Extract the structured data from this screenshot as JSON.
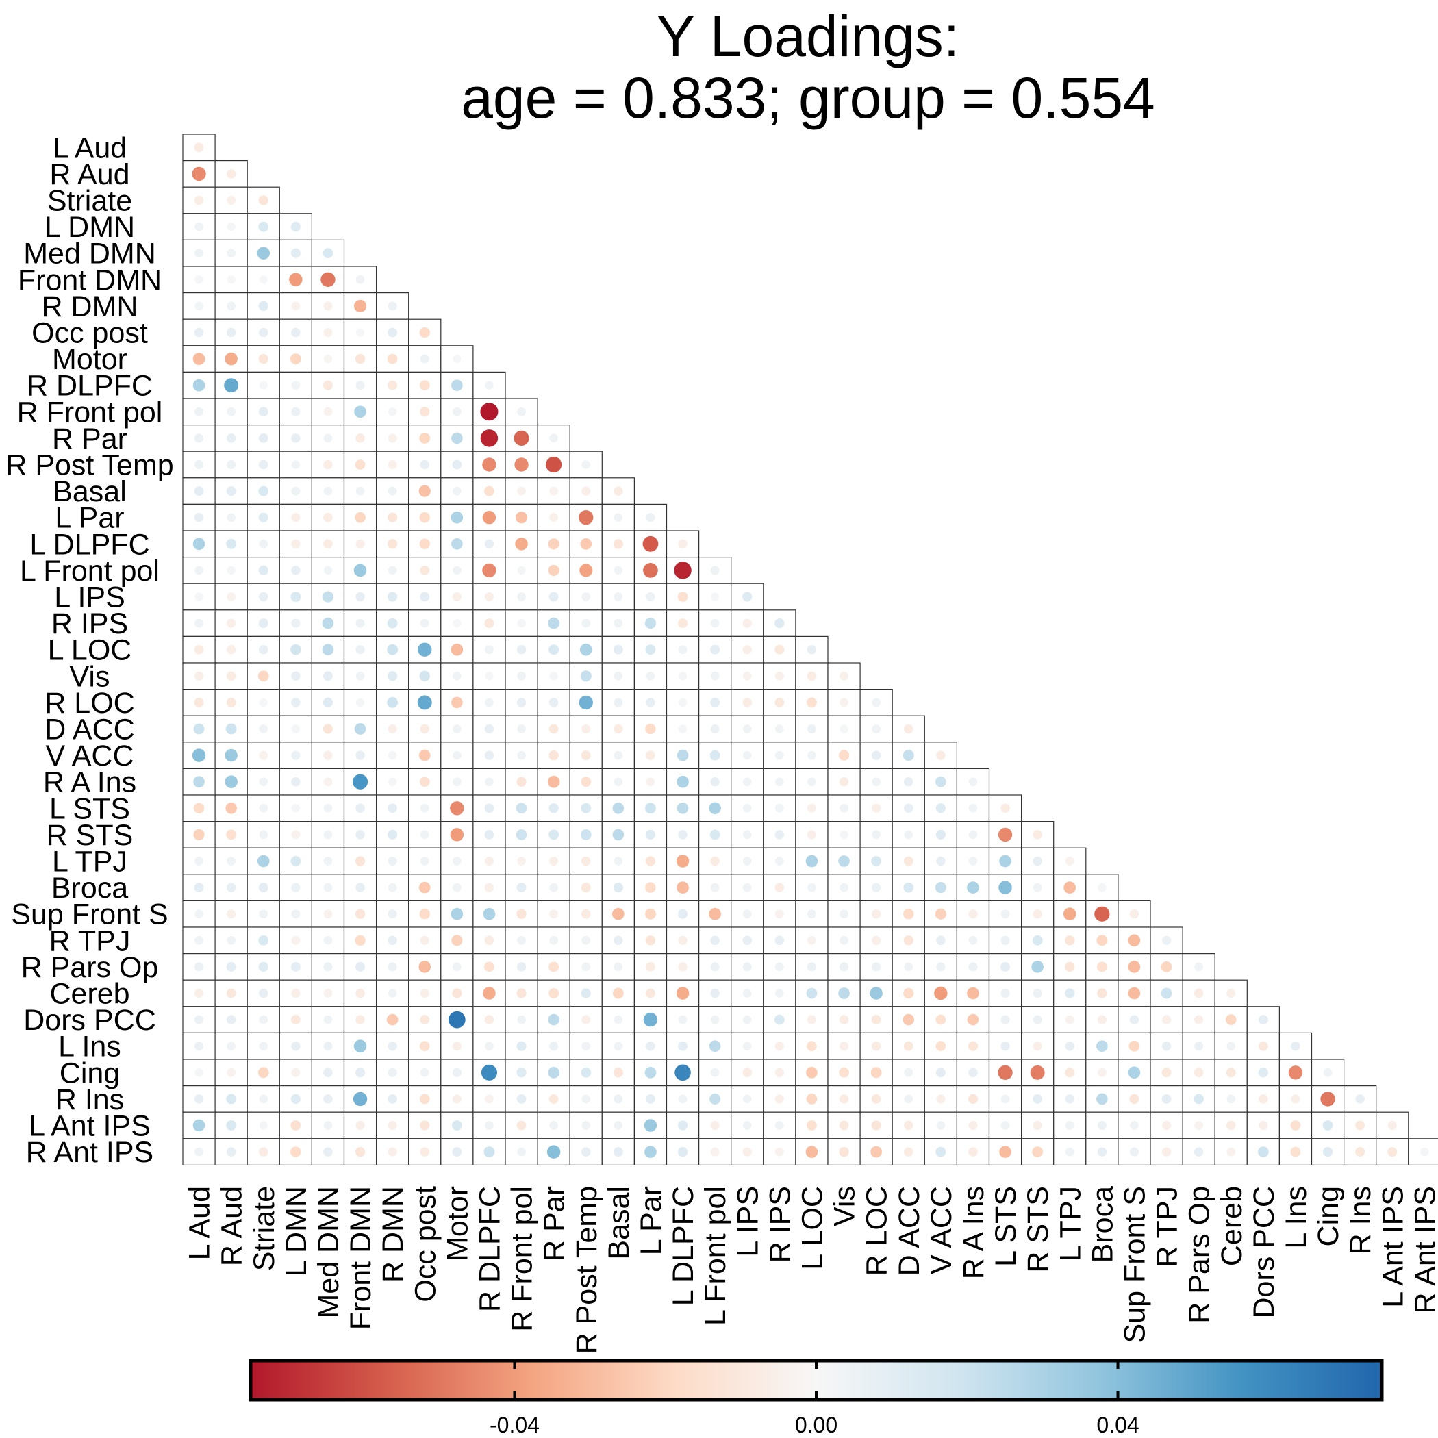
{
  "chart_data": {
    "type": "heatmap",
    "subtype": "lower-triangle correlation dot matrix",
    "title": [
      "Y Loadings:",
      "age = 0.833; group = 0.554"
    ],
    "labels": [
      "L Aud",
      "R Aud",
      "Striate",
      "L DMN",
      "Med DMN",
      "Front DMN",
      "R DMN",
      "Occ post",
      "Motor",
      "R DLPFC",
      "R Front pol",
      "R Par",
      "R Post Temp",
      "Basal",
      "L Par",
      "L DLPFC",
      "L Front pol",
      "L IPS",
      "R IPS",
      "L LOC",
      "Vis",
      "R LOC",
      "D ACC",
      "V ACC",
      "R A Ins",
      "L STS",
      "R STS",
      "L TPJ",
      "Broca",
      "Sup Front S",
      "R TPJ",
      "R Pars Op",
      "Cereb",
      "Dors PCC",
      "L Ins",
      "Cing",
      "R Ins",
      "L Ant IPS",
      "R Ant IPS"
    ],
    "value_range": [
      -0.075,
      0.075
    ],
    "colorbar": {
      "orientation": "horizontal",
      "position": "bottom",
      "ticks": [
        -0.04,
        0.0,
        0.04
      ],
      "tick_labels": [
        "-0.04",
        "0.00",
        "0.04"
      ],
      "colors": [
        "#b2182b",
        "#d6604d",
        "#f4a582",
        "#fddbc7",
        "#f7f7f7",
        "#d1e5f0",
        "#92c5de",
        "#4393c3",
        "#2166ac"
      ]
    },
    "rows": [
      [
        -0.008
      ],
      [
        -0.045,
        -0.008
      ],
      [
        -0.007,
        -0.005,
        -0.012
      ],
      [
        0.004,
        0.002,
        0.015,
        0.012
      ],
      [
        0.005,
        0.004,
        0.035,
        0.011,
        0.015
      ],
      [
        0.002,
        0.001,
        0.001,
        -0.04,
        -0.05,
        0.004
      ],
      [
        0.003,
        0.004,
        0.012,
        -0.004,
        -0.005,
        -0.033,
        0.006
      ],
      [
        0.008,
        0.008,
        0.008,
        0.008,
        -0.005,
        0.001,
        0.01,
        -0.018
      ],
      [
        -0.03,
        -0.035,
        -0.012,
        -0.02,
        -0.002,
        -0.012,
        -0.015,
        0.005,
        0.001
      ],
      [
        0.03,
        0.048,
        0.001,
        0.003,
        -0.01,
        0.005,
        -0.01,
        -0.015,
        0.025,
        0.003
      ],
      [
        0.005,
        0.004,
        0.01,
        0.006,
        -0.004,
        0.03,
        0.002,
        -0.012,
        0.004,
        -0.075,
        0.004
      ],
      [
        0.006,
        0.008,
        0.01,
        0.008,
        0.004,
        -0.008,
        -0.005,
        -0.02,
        0.025,
        -0.072,
        -0.055,
        0.004
      ],
      [
        0.005,
        0.005,
        0.008,
        0.003,
        -0.007,
        -0.015,
        -0.005,
        0.008,
        0.01,
        -0.045,
        -0.045,
        -0.06,
        0.003
      ],
      [
        0.01,
        0.01,
        0.015,
        0.005,
        0.004,
        0.004,
        0.005,
        -0.028,
        0.004,
        -0.015,
        -0.004,
        -0.004,
        -0.006,
        -0.008
      ],
      [
        0.008,
        0.004,
        0.012,
        -0.006,
        -0.008,
        -0.02,
        -0.012,
        -0.018,
        0.03,
        -0.04,
        -0.028,
        -0.005,
        -0.05,
        0.004,
        0.006
      ],
      [
        0.03,
        0.015,
        0.004,
        -0.006,
        -0.008,
        -0.006,
        -0.012,
        -0.018,
        0.025,
        0.008,
        -0.035,
        -0.022,
        -0.025,
        -0.012,
        -0.058,
        -0.006
      ],
      [
        0.004,
        0.002,
        0.012,
        0.008,
        0.003,
        0.035,
        0.004,
        -0.01,
        0.004,
        -0.045,
        0.002,
        -0.022,
        -0.038,
        0.003,
        -0.052,
        -0.072,
        0.005
      ],
      [
        0.002,
        -0.004,
        0.008,
        0.015,
        0.022,
        0.008,
        0.012,
        0.01,
        -0.006,
        -0.006,
        0.004,
        0.01,
        0.004,
        0.004,
        0.006,
        -0.015,
        0.001,
        0.012
      ],
      [
        0.004,
        -0.006,
        0.01,
        0.006,
        0.025,
        0.005,
        0.015,
        0.004,
        0.001,
        -0.01,
        0.002,
        0.025,
        0.004,
        0.004,
        0.022,
        -0.01,
        0.004,
        -0.006,
        0.012
      ],
      [
        -0.008,
        -0.006,
        0.008,
        0.018,
        0.025,
        0.006,
        0.02,
        0.045,
        -0.03,
        0.004,
        0.008,
        0.015,
        0.03,
        0.01,
        0.015,
        0.004,
        0.01,
        -0.006,
        -0.01,
        0.008
      ],
      [
        -0.006,
        -0.008,
        -0.02,
        0.008,
        0.01,
        0.004,
        0.012,
        0.018,
        0.004,
        0.001,
        0.004,
        0.002,
        0.022,
        0.004,
        0.004,
        0.002,
        0.004,
        -0.004,
        -0.005,
        -0.008,
        -0.005
      ],
      [
        -0.01,
        -0.01,
        0.001,
        0.008,
        0.012,
        0.002,
        0.02,
        0.048,
        -0.025,
        0.004,
        0.008,
        0.008,
        0.045,
        0.006,
        0.008,
        0.002,
        0.01,
        -0.008,
        -0.01,
        -0.015,
        -0.004,
        0.004
      ],
      [
        0.02,
        0.02,
        0.004,
        0.002,
        -0.012,
        0.025,
        -0.006,
        -0.008,
        0.004,
        0.008,
        0.004,
        -0.01,
        -0.006,
        -0.008,
        -0.018,
        0.002,
        0.006,
        0.004,
        0.004,
        0.006,
        0.002,
        0.004,
        -0.008
      ],
      [
        0.04,
        0.035,
        -0.004,
        0.006,
        -0.006,
        0.008,
        0.002,
        -0.025,
        0.004,
        0.008,
        0.004,
        -0.012,
        -0.01,
        0.004,
        -0.008,
        0.025,
        0.015,
        0.004,
        0.004,
        0.004,
        -0.018,
        0.008,
        0.022,
        -0.008
      ],
      [
        0.025,
        0.035,
        0.004,
        0.008,
        -0.004,
        0.055,
        0.002,
        -0.015,
        0.004,
        0.004,
        -0.012,
        -0.03,
        -0.015,
        0.004,
        -0.004,
        0.03,
        0.008,
        0.004,
        0.004,
        0.004,
        -0.008,
        0.004,
        0.008,
        0.02,
        0.004
      ],
      [
        -0.018,
        -0.025,
        0.004,
        0.002,
        0.004,
        0.008,
        0.01,
        0.004,
        -0.045,
        0.01,
        0.02,
        0.012,
        0.015,
        0.025,
        0.02,
        0.025,
        0.03,
        0.004,
        0.004,
        -0.005,
        0.004,
        -0.006,
        0.008,
        0.012,
        0.004,
        -0.008
      ],
      [
        -0.022,
        -0.015,
        0.004,
        -0.004,
        0.004,
        0.008,
        0.012,
        0.004,
        -0.04,
        0.01,
        0.02,
        0.015,
        0.02,
        0.025,
        0.012,
        0.008,
        0.015,
        0.004,
        0.008,
        -0.006,
        0.002,
        0.004,
        0.004,
        0.012,
        0.004,
        -0.045,
        -0.008
      ],
      [
        0.004,
        0.004,
        0.03,
        0.015,
        0.004,
        -0.012,
        0.006,
        0.004,
        0.004,
        -0.006,
        -0.004,
        -0.006,
        -0.008,
        0.004,
        -0.012,
        -0.035,
        -0.008,
        0.004,
        0.004,
        0.03,
        0.025,
        0.015,
        -0.01,
        0.008,
        0.004,
        0.03,
        0.008,
        -0.004
      ],
      [
        0.01,
        0.008,
        0.01,
        0.006,
        0.004,
        0.008,
        0.004,
        -0.025,
        0.004,
        -0.006,
        0.01,
        0.004,
        -0.01,
        0.012,
        -0.018,
        -0.03,
        0.004,
        0.004,
        -0.008,
        0.004,
        0.004,
        0.006,
        0.015,
        0.022,
        0.03,
        0.04,
        0.004,
        -0.03,
        0.002
      ],
      [
        0.003,
        -0.005,
        0.004,
        0.004,
        -0.004,
        -0.012,
        0.006,
        -0.018,
        0.03,
        0.03,
        -0.012,
        -0.004,
        -0.008,
        -0.03,
        -0.02,
        0.01,
        -0.03,
        0.004,
        -0.004,
        0.004,
        0.004,
        -0.006,
        -0.018,
        -0.022,
        -0.006,
        0.004,
        -0.006,
        -0.035,
        -0.055,
        -0.006
      ],
      [
        0.004,
        0.004,
        0.015,
        -0.004,
        0.004,
        -0.018,
        0.008,
        -0.006,
        -0.022,
        -0.008,
        0.004,
        0.004,
        0.004,
        0.008,
        -0.012,
        -0.006,
        0.008,
        0.008,
        0.008,
        -0.004,
        0.004,
        -0.006,
        -0.012,
        0.008,
        0.004,
        0.006,
        0.015,
        -0.012,
        -0.02,
        -0.03,
        0.006
      ],
      [
        0.006,
        0.01,
        0.012,
        0.01,
        0.006,
        0.01,
        0.006,
        -0.03,
        0.004,
        -0.015,
        0.008,
        -0.015,
        0.004,
        0.004,
        -0.008,
        -0.006,
        0.006,
        0.006,
        0.004,
        0.006,
        0.006,
        0.006,
        0.004,
        0.006,
        0.006,
        0.01,
        0.03,
        -0.012,
        -0.015,
        -0.03,
        -0.02,
        0.004
      ],
      [
        -0.006,
        -0.01,
        0.008,
        -0.006,
        -0.004,
        -0.008,
        0.004,
        -0.006,
        -0.012,
        -0.035,
        -0.012,
        -0.015,
        0.012,
        -0.02,
        -0.01,
        -0.035,
        0.008,
        0.004,
        0.004,
        0.02,
        0.025,
        0.035,
        -0.018,
        -0.04,
        -0.03,
        0.006,
        0.006,
        0.012,
        -0.012,
        -0.03,
        0.02,
        -0.008,
        -0.006
      ],
      [
        0.006,
        0.008,
        0.004,
        -0.01,
        0.004,
        -0.008,
        -0.025,
        -0.01,
        0.068,
        -0.008,
        0.004,
        0.025,
        -0.006,
        0.004,
        0.045,
        0.004,
        0.004,
        0.004,
        0.015,
        -0.006,
        -0.008,
        -0.01,
        -0.025,
        -0.015,
        -0.025,
        0.006,
        0.006,
        -0.004,
        -0.006,
        0.008,
        -0.006,
        -0.006,
        -0.02,
        0.01
      ],
      [
        0.006,
        0.004,
        0.004,
        0.008,
        0.006,
        0.035,
        0.008,
        -0.015,
        -0.006,
        0.004,
        0.012,
        0.006,
        0.004,
        0.004,
        0.008,
        0.01,
        0.025,
        0.004,
        -0.006,
        -0.015,
        -0.006,
        -0.008,
        -0.01,
        -0.015,
        -0.012,
        0.008,
        -0.006,
        0.008,
        0.025,
        -0.02,
        0.008,
        0.006,
        0.004,
        -0.01,
        0.008
      ],
      [
        0.002,
        -0.004,
        -0.02,
        -0.004,
        0.008,
        0.01,
        0.006,
        0.004,
        0.006,
        0.06,
        0.012,
        0.025,
        0.015,
        -0.012,
        0.025,
        0.062,
        0.004,
        -0.008,
        -0.006,
        -0.025,
        -0.015,
        -0.02,
        0.004,
        0.01,
        0.008,
        -0.05,
        -0.048,
        -0.01,
        -0.004,
        0.03,
        -0.01,
        -0.008,
        -0.01,
        0.012,
        -0.045,
        0.004
      ],
      [
        0.008,
        0.015,
        0.004,
        0.012,
        0.008,
        0.045,
        0.01,
        -0.015,
        -0.006,
        -0.004,
        0.01,
        -0.01,
        0.004,
        0.006,
        0.01,
        0.004,
        0.022,
        0.004,
        -0.006,
        -0.02,
        -0.008,
        -0.01,
        0.004,
        -0.006,
        -0.012,
        0.004,
        0.01,
        0.008,
        0.025,
        -0.012,
        0.01,
        0.015,
        0.004,
        -0.008,
        -0.006,
        -0.05,
        0.008
      ],
      [
        0.03,
        0.015,
        0.002,
        -0.015,
        0.004,
        -0.006,
        -0.006,
        -0.012,
        0.015,
        0.004,
        -0.01,
        0.004,
        0.004,
        0.004,
        0.035,
        0.012,
        -0.006,
        0.004,
        0.004,
        -0.015,
        -0.01,
        -0.012,
        -0.008,
        0.004,
        -0.006,
        0.004,
        -0.006,
        0.004,
        0.006,
        0.004,
        -0.006,
        -0.004,
        -0.008,
        -0.006,
        -0.015,
        0.015,
        -0.01,
        -0.006
      ],
      [
        0.004,
        0.008,
        -0.008,
        -0.018,
        0.008,
        -0.012,
        -0.006,
        -0.008,
        0.01,
        0.02,
        0.004,
        0.04,
        0.008,
        0.01,
        0.03,
        0.012,
        -0.004,
        -0.006,
        -0.004,
        -0.03,
        -0.012,
        -0.025,
        -0.008,
        0.015,
        -0.008,
        -0.03,
        -0.02,
        0.004,
        0.008,
        0.006,
        -0.006,
        0.008,
        -0.004,
        0.02,
        -0.015,
        0.012,
        -0.01,
        -0.01,
        0.002
      ]
    ]
  }
}
